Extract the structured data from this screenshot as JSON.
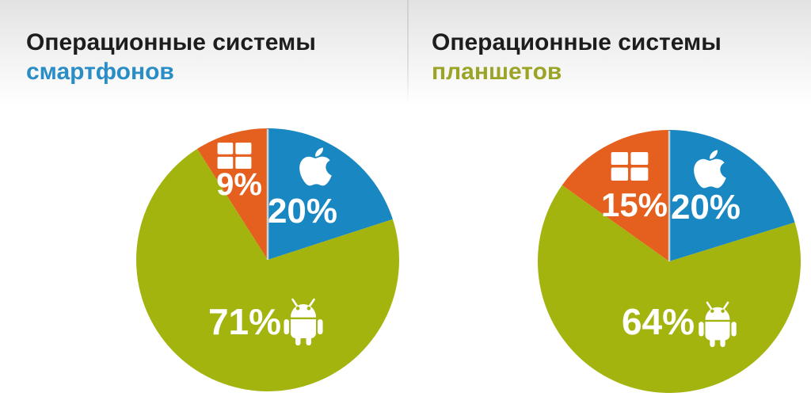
{
  "colors": {
    "pie_ios_blue": "#1987c2",
    "pie_android_green": "#a4b40e",
    "pie_windows_orange": "#e5601f",
    "slice_separator": "#ccd1d2",
    "title_text": "#1d1d1d",
    "smartphones_accent": "#2a8dc5",
    "tablets_accent": "#9ba426",
    "label_text": "#ffffff"
  },
  "charts": [
    {
      "title_black": "Операционные системы",
      "title_accent": "смартфонов",
      "accent_color": "#2a8dc5"
    },
    {
      "title_black": "Операционные системы",
      "title_accent": "планшетов",
      "accent_color": "#9ba426"
    }
  ],
  "chart_data": [
    {
      "type": "pie",
      "title": "Операционные системы смартфонов",
      "labels": [
        "iOS",
        "Android",
        "Windows"
      ],
      "icons": [
        "apple-icon",
        "android-icon",
        "windows-icon"
      ],
      "values": [
        20,
        71,
        9
      ],
      "display_labels": [
        "20%",
        "71%",
        "9%"
      ],
      "colors": [
        "#1987c2",
        "#a4b40e",
        "#e5601f"
      ],
      "start_angle_deg": 0,
      "direction": "clockwise",
      "legend_position": "none"
    },
    {
      "type": "pie",
      "title": "Операционные системы планшетов",
      "labels": [
        "iOS",
        "Android",
        "Windows"
      ],
      "icons": [
        "apple-icon",
        "android-icon",
        "windows-icon"
      ],
      "values": [
        20,
        64,
        15
      ],
      "display_labels": [
        "20%",
        "64%",
        "15%"
      ],
      "colors": [
        "#1987c2",
        "#a4b40e",
        "#e5601f"
      ],
      "start_angle_deg": 0,
      "direction": "clockwise",
      "legend_position": "none"
    }
  ]
}
